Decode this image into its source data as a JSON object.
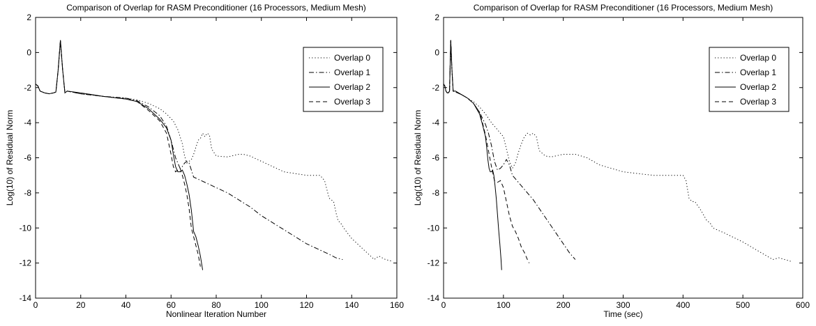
{
  "chart_data": [
    {
      "type": "line",
      "title": "Comparison of Overlap for RASM Preconditioner (16 Processors, Medium Mesh)",
      "xlabel": "Nonlinear Iteration Number",
      "ylabel": "Log(10) of Residual Norm",
      "xlim": [
        0,
        160
      ],
      "ylim": [
        -14,
        2
      ],
      "xticks": [
        "0",
        "20",
        "40",
        "60",
        "80",
        "100",
        "120",
        "140",
        "160"
      ],
      "yticks": [
        "2",
        "0",
        "-2",
        "-4",
        "-6",
        "-8",
        "-10",
        "-12",
        "-14"
      ],
      "grid": false,
      "legend": "top-right",
      "series": [
        {
          "name": "Overlap 0",
          "style": "dotted",
          "x": [
            0,
            1,
            2,
            4,
            6,
            8,
            9,
            10,
            11,
            12,
            13,
            14,
            20,
            30,
            40,
            45,
            50,
            55,
            58,
            61,
            63,
            65,
            66,
            67,
            68,
            69,
            70,
            71,
            72,
            73,
            74,
            75,
            76,
            77,
            78,
            80,
            85,
            90,
            92,
            95,
            100,
            105,
            110,
            115,
            120,
            125,
            126,
            128,
            130,
            132,
            133,
            134,
            135,
            137,
            140,
            145,
            150,
            152,
            155,
            158
          ],
          "y": [
            -1.8,
            -1.9,
            -2.2,
            -2.3,
            -2.35,
            -2.3,
            -2.25,
            -1.0,
            0.6,
            -1.0,
            -2.3,
            -2.2,
            -2.35,
            -2.5,
            -2.6,
            -2.7,
            -2.9,
            -3.2,
            -3.5,
            -3.9,
            -4.4,
            -5.2,
            -5.9,
            -6.3,
            -6.2,
            -6.1,
            -5.8,
            -5.4,
            -5.0,
            -4.9,
            -4.6,
            -4.8,
            -4.6,
            -4.7,
            -5.5,
            -5.9,
            -5.95,
            -5.8,
            -5.8,
            -5.9,
            -6.2,
            -6.5,
            -6.8,
            -6.9,
            -7.0,
            -7.0,
            -7.0,
            -7.3,
            -8.3,
            -8.5,
            -9.1,
            -9.6,
            -9.7,
            -10.1,
            -10.6,
            -11.2,
            -11.8,
            -11.6,
            -11.8,
            -11.9
          ]
        },
        {
          "name": "Overlap 1",
          "style": "dashdot",
          "x": [
            0,
            1,
            2,
            4,
            6,
            8,
            9,
            10,
            11,
            12,
            13,
            14,
            20,
            30,
            40,
            45,
            50,
            55,
            58,
            60,
            62,
            64,
            65,
            66,
            67,
            68,
            70,
            75,
            80,
            85,
            90,
            95,
            100,
            105,
            110,
            115,
            120,
            125,
            130,
            133,
            136
          ],
          "y": [
            -1.8,
            -1.9,
            -2.2,
            -2.3,
            -2.35,
            -2.3,
            -2.25,
            -1.0,
            0.7,
            -1.0,
            -2.3,
            -2.2,
            -2.35,
            -2.5,
            -2.6,
            -2.75,
            -3.1,
            -3.6,
            -4.2,
            -5.0,
            -6.0,
            -6.6,
            -6.5,
            -6.3,
            -6.2,
            -6.3,
            -7.1,
            -7.4,
            -7.7,
            -8.0,
            -8.4,
            -8.8,
            -9.3,
            -9.7,
            -10.1,
            -10.5,
            -10.9,
            -11.2,
            -11.5,
            -11.7,
            -11.8
          ]
        },
        {
          "name": "Overlap 2",
          "style": "solid",
          "x": [
            0,
            1,
            2,
            4,
            6,
            8,
            9,
            10,
            11,
            12,
            13,
            14,
            20,
            30,
            40,
            45,
            50,
            55,
            58,
            60,
            61,
            62,
            63,
            64,
            65,
            66,
            67,
            68,
            69,
            70,
            71,
            72,
            73,
            74
          ],
          "y": [
            -1.8,
            -1.9,
            -2.2,
            -2.3,
            -2.35,
            -2.3,
            -2.25,
            -1.0,
            0.7,
            -1.0,
            -2.3,
            -2.2,
            -2.3,
            -2.5,
            -2.65,
            -2.8,
            -3.2,
            -3.8,
            -4.3,
            -5.0,
            -5.8,
            -6.5,
            -6.8,
            -6.8,
            -6.7,
            -7.0,
            -7.5,
            -8.1,
            -9.0,
            -10.2,
            -10.5,
            -11.0,
            -11.6,
            -12.4
          ]
        },
        {
          "name": "Overlap 3",
          "style": "dashed",
          "x": [
            0,
            1,
            2,
            4,
            6,
            8,
            9,
            10,
            11,
            12,
            13,
            14,
            20,
            30,
            40,
            45,
            50,
            55,
            58,
            59,
            60,
            61,
            62,
            63,
            64,
            65,
            66,
            67,
            68,
            69,
            70,
            71,
            72,
            73
          ],
          "y": [
            -1.8,
            -1.9,
            -2.2,
            -2.3,
            -2.35,
            -2.3,
            -2.25,
            -1.0,
            0.7,
            -1.0,
            -2.3,
            -2.2,
            -2.35,
            -2.5,
            -2.65,
            -2.8,
            -3.3,
            -3.9,
            -4.6,
            -5.2,
            -5.8,
            -6.5,
            -6.8,
            -6.7,
            -6.6,
            -7.0,
            -7.5,
            -8.1,
            -8.9,
            -10.0,
            -10.5,
            -11.0,
            -11.5,
            -12.2
          ]
        }
      ]
    },
    {
      "type": "line",
      "title": "Comparison of Overlap for RASM Preconditioner (16 Processors, Medium Mesh)",
      "xlabel": "Time (sec)",
      "ylabel": "Log(10) of Residual Norm",
      "xlim": [
        0,
        600
      ],
      "ylim": [
        -14,
        2
      ],
      "xticks": [
        "0",
        "100",
        "200",
        "300",
        "400",
        "500",
        "600"
      ],
      "yticks": [
        "2",
        "0",
        "-2",
        "-4",
        "-6",
        "-8",
        "-10",
        "-12",
        "-14"
      ],
      "grid": false,
      "legend": "top-right",
      "series": [
        {
          "name": "Overlap 0",
          "style": "dotted",
          "x": [
            0,
            2,
            4,
            6,
            8,
            10,
            12,
            14,
            16,
            20,
            30,
            40,
            50,
            60,
            70,
            80,
            90,
            100,
            105,
            110,
            115,
            120,
            125,
            130,
            135,
            140,
            145,
            150,
            155,
            160,
            170,
            180,
            200,
            220,
            240,
            260,
            300,
            350,
            400,
            405,
            410,
            415,
            420,
            430,
            440,
            445,
            450,
            470,
            500,
            520,
            540,
            550,
            560,
            570,
            580
          ],
          "y": [
            -1.8,
            -1.9,
            -2.2,
            -2.3,
            -2.3,
            -2.2,
            0.6,
            -1.0,
            -2.2,
            -2.25,
            -2.4,
            -2.6,
            -2.8,
            -3.1,
            -3.5,
            -4.0,
            -4.4,
            -4.8,
            -5.5,
            -6.2,
            -6.6,
            -6.3,
            -5.7,
            -5.2,
            -4.8,
            -4.6,
            -4.7,
            -4.6,
            -4.8,
            -5.6,
            -5.9,
            -5.95,
            -5.8,
            -5.8,
            -6.0,
            -6.4,
            -6.8,
            -7.0,
            -7.0,
            -7.3,
            -8.3,
            -8.5,
            -8.5,
            -9.0,
            -9.6,
            -9.7,
            -10.0,
            -10.3,
            -10.8,
            -11.2,
            -11.6,
            -11.8,
            -11.7,
            -11.8,
            -11.9
          ]
        },
        {
          "name": "Overlap 1",
          "style": "dashdot",
          "x": [
            0,
            2,
            4,
            6,
            8,
            10,
            12,
            14,
            16,
            20,
            30,
            40,
            50,
            60,
            70,
            75,
            80,
            85,
            90,
            95,
            100,
            105,
            110,
            115,
            120,
            130,
            140,
            150,
            160,
            170,
            180,
            190,
            200,
            210,
            220
          ],
          "y": [
            -1.8,
            -1.9,
            -2.2,
            -2.3,
            -2.3,
            -2.2,
            0.7,
            -1.0,
            -2.2,
            -2.25,
            -2.4,
            -2.6,
            -2.9,
            -3.4,
            -4.1,
            -4.6,
            -5.3,
            -6.2,
            -6.7,
            -6.6,
            -6.4,
            -6.1,
            -6.4,
            -7.0,
            -7.2,
            -7.6,
            -8.0,
            -8.4,
            -8.9,
            -9.4,
            -9.9,
            -10.4,
            -10.9,
            -11.4,
            -11.8
          ]
        },
        {
          "name": "Overlap 2",
          "style": "solid",
          "x": [
            0,
            2,
            4,
            6,
            8,
            10,
            12,
            14,
            16,
            20,
            30,
            40,
            50,
            60,
            65,
            70,
            72,
            74,
            76,
            78,
            80,
            82,
            84,
            86,
            88,
            90,
            92,
            94,
            96,
            97
          ],
          "y": [
            -1.8,
            -1.9,
            -2.2,
            -2.3,
            -2.3,
            -2.2,
            0.7,
            -1.0,
            -2.2,
            -2.2,
            -2.4,
            -2.6,
            -2.9,
            -3.5,
            -4.1,
            -4.8,
            -5.4,
            -6.1,
            -6.6,
            -6.8,
            -6.8,
            -6.7,
            -7.0,
            -7.6,
            -8.3,
            -9.2,
            -10.1,
            -10.9,
            -11.8,
            -12.4
          ]
        },
        {
          "name": "Overlap 3",
          "style": "dashed",
          "x": [
            0,
            2,
            4,
            6,
            8,
            10,
            12,
            14,
            16,
            20,
            30,
            40,
            50,
            60,
            65,
            70,
            75,
            80,
            85,
            90,
            95,
            100,
            105,
            110,
            115,
            120,
            125,
            130,
            135,
            140,
            143
          ],
          "y": [
            -1.8,
            -1.9,
            -2.2,
            -2.3,
            -2.3,
            -2.2,
            0.7,
            -1.0,
            -2.2,
            -2.25,
            -2.4,
            -2.6,
            -2.9,
            -3.4,
            -4.0,
            -4.7,
            -5.6,
            -6.5,
            -7.3,
            -7.4,
            -7.3,
            -7.7,
            -8.5,
            -9.3,
            -9.9,
            -10.2,
            -10.6,
            -11.1,
            -11.4,
            -11.8,
            -12.0
          ]
        }
      ]
    }
  ]
}
